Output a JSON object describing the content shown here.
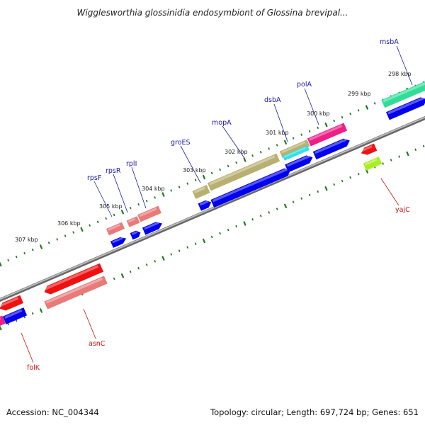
{
  "title": "Wigglesworthia glossinidia endosymbiont of Glossina brevipal...",
  "footer": {
    "accession": "Accession: NC_004344",
    "topology": "Topology: circular; Length: 697,724 bp; Genes: 651"
  },
  "kbp_labels": [
    "298 kbp",
    "299 kbp",
    "300 kbp",
    "301 kbp",
    "302 kbp",
    "303 kbp",
    "304 kbp",
    "305 kbp",
    "306 kbp",
    "307 kbp"
  ],
  "genes_forward": [
    "msbA",
    "polA",
    "dsbA",
    "mopA",
    "groES",
    "rplI",
    "rpsR",
    "rpsF"
  ],
  "genes_reverse": [
    "yajC",
    "asnC",
    "folK"
  ],
  "colors": {
    "forward_label": "#1a1aa8",
    "reverse_label": "#cc1111",
    "backbone": "#888888",
    "tick": "#1e7a1e",
    "cds": "#0000ee"
  }
}
